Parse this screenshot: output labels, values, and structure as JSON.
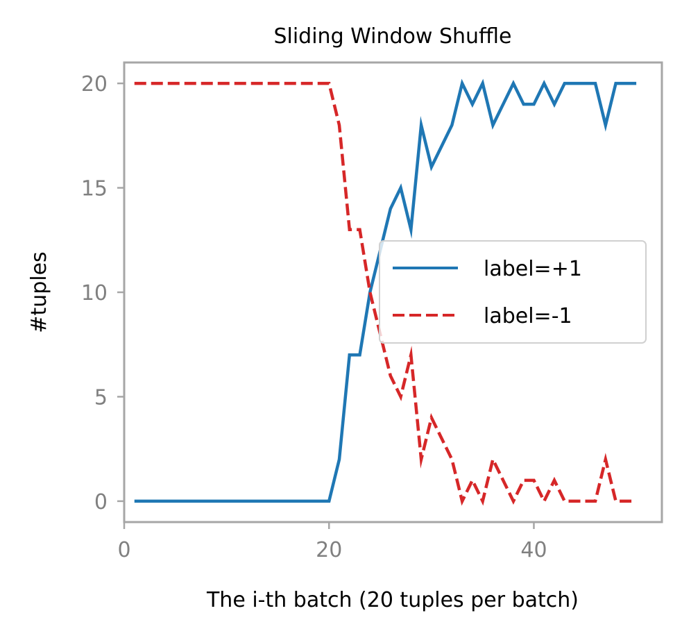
{
  "chart_data": {
    "type": "line",
    "title": "Sliding Window Shuffle",
    "xlabel": "The i-th batch (20 tuples per batch)",
    "ylabel": "#tuples",
    "xlim": [
      0,
      52.5
    ],
    "ylim": [
      -1,
      21
    ],
    "xticks": [
      0,
      20,
      40
    ],
    "yticks": [
      0,
      5,
      10,
      15,
      20
    ],
    "grid": false,
    "legend_position": "center-right",
    "colors": {
      "spine": "#a6a6a6",
      "tick": "#808080"
    },
    "series": [
      {
        "name": "label=+1",
        "color": "#1f77b4",
        "style": "solid",
        "x": [
          1,
          2,
          3,
          4,
          5,
          6,
          7,
          8,
          9,
          10,
          11,
          12,
          13,
          14,
          15,
          16,
          17,
          18,
          19,
          20,
          21,
          22,
          23,
          24,
          25,
          26,
          27,
          28,
          29,
          30,
          31,
          32,
          33,
          34,
          35,
          36,
          37,
          38,
          39,
          40,
          41,
          42,
          43,
          44,
          45,
          46,
          47,
          48,
          49,
          50
        ],
        "values": [
          0,
          0,
          0,
          0,
          0,
          0,
          0,
          0,
          0,
          0,
          0,
          0,
          0,
          0,
          0,
          0,
          0,
          0,
          0,
          0,
          2,
          7,
          7,
          10,
          12,
          14,
          15,
          13,
          18,
          16,
          17,
          18,
          20,
          19,
          20,
          18,
          19,
          20,
          19,
          19,
          20,
          19,
          20,
          20,
          20,
          20,
          18,
          20,
          20,
          20
        ]
      },
      {
        "name": "label=-1",
        "color": "#d62728",
        "style": "dashed",
        "x": [
          1,
          2,
          3,
          4,
          5,
          6,
          7,
          8,
          9,
          10,
          11,
          12,
          13,
          14,
          15,
          16,
          17,
          18,
          19,
          20,
          21,
          22,
          23,
          24,
          25,
          26,
          27,
          28,
          29,
          30,
          31,
          32,
          33,
          34,
          35,
          36,
          37,
          38,
          39,
          40,
          41,
          42,
          43,
          44,
          45,
          46,
          47,
          48,
          49,
          50
        ],
        "values": [
          20,
          20,
          20,
          20,
          20,
          20,
          20,
          20,
          20,
          20,
          20,
          20,
          20,
          20,
          20,
          20,
          20,
          20,
          20,
          20,
          18,
          13,
          13,
          10,
          8,
          6,
          5,
          7,
          2,
          4,
          3,
          2,
          0,
          1,
          0,
          2,
          1,
          0,
          1,
          1,
          0,
          1,
          0,
          0,
          0,
          0,
          2,
          0,
          0,
          0
        ]
      }
    ]
  }
}
